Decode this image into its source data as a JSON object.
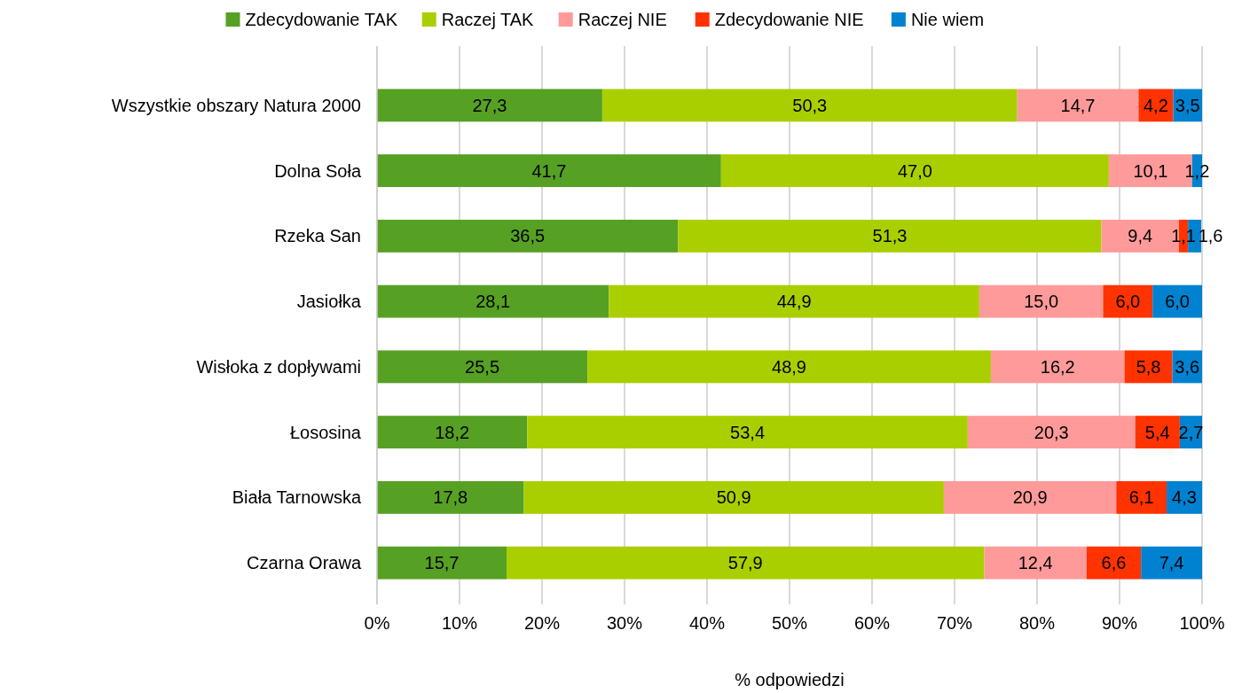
{
  "chart_data": {
    "type": "bar",
    "orientation": "horizontal",
    "stacked": true,
    "xlabel": "% odpowiedzi",
    "categories": [
      "Wszystkie obszary Natura 2000",
      "Dolna Soła",
      "Rzeka San",
      "Jasiołka",
      "Wisłoka z dopływami",
      "Łososina",
      "Biała Tarnowska",
      "Czarna Orawa"
    ],
    "series": [
      {
        "name": "Zdecydowanie TAK",
        "color": "#56a024",
        "values": [
          27.3,
          41.7,
          36.5,
          28.1,
          25.5,
          18.2,
          17.8,
          15.7
        ],
        "value_labels": [
          "27,3",
          "41,7",
          "36,5",
          "28,1",
          "25,5",
          "18,2",
          "17,8",
          "15,7"
        ]
      },
      {
        "name": "Raczej TAK",
        "color": "#aacf00",
        "values": [
          50.3,
          47.0,
          51.3,
          44.9,
          48.9,
          53.4,
          50.9,
          57.9
        ],
        "value_labels": [
          "50,3",
          "47,0",
          "51,3",
          "44,9",
          "48,9",
          "53,4",
          "50,9",
          "57,9"
        ]
      },
      {
        "name": "Raczej NIE",
        "color": "#ff9a9a",
        "values": [
          14.7,
          10.1,
          9.4,
          15.0,
          16.2,
          20.3,
          20.9,
          12.4
        ],
        "value_labels": [
          "14,7",
          "10,1",
          "9,4",
          "15,0",
          "16,2",
          "20,3",
          "20,9",
          "12,4"
        ]
      },
      {
        "name": "Zdecydowanie NIE",
        "color": "#ff3300",
        "values": [
          4.2,
          0,
          1.1,
          6.0,
          5.8,
          5.4,
          6.1,
          6.6
        ],
        "value_labels": [
          "4,2",
          null,
          "1,1",
          "6,0",
          "5,8",
          "5,4",
          "6,1",
          "6,6"
        ]
      },
      {
        "name": "Nie wiem",
        "color": "#0082d0",
        "values": [
          3.5,
          1.2,
          1.6,
          6.0,
          3.6,
          2.7,
          4.3,
          7.4
        ],
        "value_labels": [
          "3,5",
          "1,2",
          "1,6",
          "6,0",
          "3,6",
          "2,7",
          "4,3",
          "7,4"
        ]
      }
    ],
    "xlim": [
      0,
      100
    ],
    "xticks": [
      {
        "value": 0,
        "label": "0%"
      },
      {
        "value": 10,
        "label": "10%"
      },
      {
        "value": 20,
        "label": "20%"
      },
      {
        "value": 30,
        "label": "30%"
      },
      {
        "value": 40,
        "label": "40%"
      },
      {
        "value": 50,
        "label": "50%"
      },
      {
        "value": 60,
        "label": "60%"
      },
      {
        "value": 70,
        "label": "70%"
      },
      {
        "value": 80,
        "label": "80%"
      },
      {
        "value": 90,
        "label": "90%"
      },
      {
        "value": 100,
        "label": "100%"
      }
    ],
    "grid": "x",
    "legend": "top"
  }
}
